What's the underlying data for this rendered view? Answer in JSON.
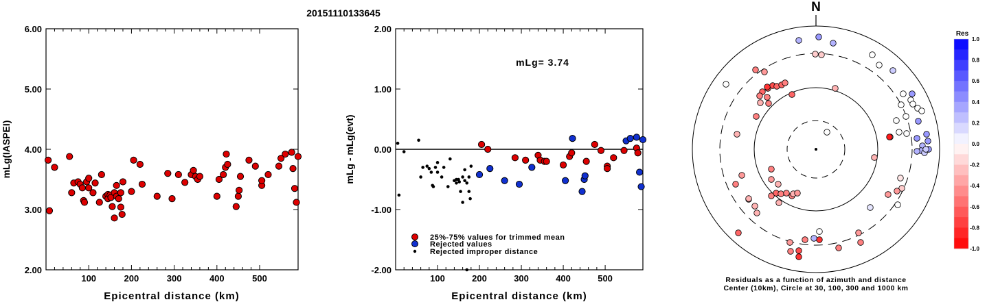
{
  "title": "20151110133645",
  "chart_data": [
    {
      "type": "scatter",
      "xlabel": "Epicentral distance (km)",
      "ylabel": "mLg(IASPEI)",
      "xlim": [
        0,
        590
      ],
      "ylim": [
        2.0,
        6.0
      ],
      "x_ticks": [
        "100",
        "200",
        "300",
        "400",
        "500"
      ],
      "y_ticks": [
        "2.00",
        "3.00",
        "4.00",
        "5.00",
        "6.00"
      ],
      "grid": false,
      "series": [
        {
          "color": "#dd0000",
          "points": [
            [
              5,
              3.82
            ],
            [
              8,
              2.98
            ],
            [
              20,
              3.7
            ],
            [
              55,
              3.88
            ],
            [
              60,
              3.28
            ],
            [
              65,
              3.44
            ],
            [
              75,
              3.46
            ],
            [
              80,
              3.42
            ],
            [
              85,
              3.36
            ],
            [
              88,
              3.15
            ],
            [
              90,
              3.12
            ],
            [
              95,
              3.46
            ],
            [
              100,
              3.36
            ],
            [
              100,
              3.52
            ],
            [
              110,
              3.28
            ],
            [
              115,
              3.44
            ],
            [
              125,
              3.12
            ],
            [
              130,
              3.58
            ],
            [
              140,
              3.22
            ],
            [
              145,
              3.25
            ],
            [
              145,
              3.18
            ],
            [
              150,
              3.24
            ],
            [
              152,
              3.2
            ],
            [
              155,
              3.05
            ],
            [
              160,
              3.28
            ],
            [
              160,
              2.86
            ],
            [
              165,
              3.4
            ],
            [
              165,
              3.22
            ],
            [
              170,
              3.18
            ],
            [
              175,
              3.28
            ],
            [
              175,
              3.04
            ],
            [
              178,
              2.92
            ],
            [
              180,
              3.46
            ],
            [
              200,
              3.3
            ],
            [
              205,
              3.82
            ],
            [
              220,
              3.75
            ],
            [
              225,
              3.42
            ],
            [
              260,
              3.22
            ],
            [
              285,
              3.6
            ],
            [
              295,
              3.18
            ],
            [
              310,
              3.58
            ],
            [
              325,
              3.45
            ],
            [
              340,
              3.58
            ],
            [
              345,
              3.65
            ],
            [
              350,
              3.55
            ],
            [
              355,
              3.5
            ],
            [
              360,
              3.55
            ],
            [
              400,
              3.22
            ],
            [
              405,
              3.5
            ],
            [
              415,
              3.58
            ],
            [
              420,
              3.7
            ],
            [
              422,
              3.92
            ],
            [
              425,
              3.75
            ],
            [
              445,
              3.05
            ],
            [
              450,
              3.22
            ],
            [
              452,
              3.32
            ],
            [
              455,
              3.55
            ],
            [
              475,
              3.82
            ],
            [
              490,
              3.72
            ],
            [
              505,
              3.4
            ],
            [
              505,
              3.48
            ],
            [
              520,
              3.58
            ],
            [
              545,
              3.72
            ],
            [
              550,
              3.85
            ],
            [
              560,
              3.92
            ],
            [
              575,
              3.95
            ],
            [
              578,
              3.68
            ],
            [
              582,
              3.35
            ],
            [
              586,
              3.12
            ],
            [
              590,
              3.88
            ]
          ]
        }
      ]
    },
    {
      "type": "scatter",
      "xlabel": "Epicentral distance (km)",
      "ylabel": "mLg - mLg(evt)",
      "annotation": "mLg= 3.74",
      "xlim": [
        0,
        590
      ],
      "ylim": [
        -2.0,
        2.0
      ],
      "x_ticks": [
        "100",
        "200",
        "300",
        "400",
        "500"
      ],
      "y_ticks": [
        "-2.00",
        "-1.00",
        "0.00",
        "1.00",
        "2.00"
      ],
      "reference_line": 0.0,
      "grid": false,
      "legend_position": "bottom-left",
      "series": [
        {
          "name": "25%-75% values for trimmed mean",
          "color": "#dd0000",
          "points": [
            [
              205,
              0.08
            ],
            [
              220,
              0.0
            ],
            [
              285,
              -0.14
            ],
            [
              310,
              -0.18
            ],
            [
              340,
              -0.1
            ],
            [
              345,
              -0.18
            ],
            [
              355,
              -0.2
            ],
            [
              360,
              -0.2
            ],
            [
              400,
              -0.26
            ],
            [
              415,
              -0.12
            ],
            [
              420,
              -0.06
            ],
            [
              455,
              -0.2
            ],
            [
              475,
              0.08
            ],
            [
              490,
              -0.02
            ],
            [
              505,
              -0.28
            ],
            [
              505,
              -0.32
            ],
            [
              520,
              -0.14
            ],
            [
              545,
              -0.02
            ],
            [
              575,
              0.02
            ],
            [
              578,
              -0.06
            ]
          ]
        },
        {
          "name": "Rejected values",
          "color": "#1030d0",
          "points": [
            [
              200,
              -0.42
            ],
            [
              225,
              -0.32
            ],
            [
              260,
              -0.52
            ],
            [
              295,
              -0.58
            ],
            [
              325,
              -0.3
            ],
            [
              405,
              -0.52
            ],
            [
              422,
              0.18
            ],
            [
              445,
              -0.7
            ],
            [
              450,
              -0.5
            ],
            [
              452,
              -0.44
            ],
            [
              550,
              0.14
            ],
            [
              560,
              0.18
            ],
            [
              575,
              0.2
            ],
            [
              582,
              -0.38
            ],
            [
              586,
              -0.62
            ],
            [
              590,
              0.16
            ]
          ]
        },
        {
          "name": "Rejected improper distance",
          "color": "#000000",
          "marker": "small",
          "points": [
            [
              5,
              0.1
            ],
            [
              8,
              -0.76
            ],
            [
              20,
              -0.04
            ],
            [
              55,
              0.15
            ],
            [
              60,
              -0.46
            ],
            [
              65,
              -0.3
            ],
            [
              75,
              -0.28
            ],
            [
              80,
              -0.32
            ],
            [
              85,
              -0.38
            ],
            [
              88,
              -0.6
            ],
            [
              90,
              -0.62
            ],
            [
              95,
              -0.3
            ],
            [
              100,
              -0.38
            ],
            [
              100,
              -0.22
            ],
            [
              110,
              -0.46
            ],
            [
              115,
              -0.3
            ],
            [
              125,
              -0.62
            ],
            [
              130,
              -0.16
            ],
            [
              140,
              -0.52
            ],
            [
              145,
              -0.5
            ],
            [
              145,
              -0.56
            ],
            [
              150,
              -0.5
            ],
            [
              152,
              -0.54
            ],
            [
              155,
              -0.7
            ],
            [
              160,
              -0.46
            ],
            [
              160,
              -0.88
            ],
            [
              165,
              -0.34
            ],
            [
              165,
              -0.52
            ],
            [
              170,
              -2.0
            ],
            [
              170,
              -0.56
            ],
            [
              175,
              -0.46
            ],
            [
              175,
              -0.7
            ],
            [
              178,
              -0.82
            ],
            [
              180,
              -0.28
            ]
          ]
        }
      ]
    },
    {
      "type": "scatter",
      "subtype": "polar",
      "north_label": "N",
      "caption": [
        "Residuals as a function of azimuth and distance",
        "Center (10km), Circle at 30, 100, 300 and 1000 km"
      ],
      "radial_rings_km": [
        30,
        100,
        300,
        1000
      ],
      "colorbar": {
        "title": "Res",
        "ticks": [
          "1.0",
          "0.8",
          "0.6",
          "0.4",
          "0.2",
          "0.0",
          "-0.2",
          "-0.4",
          "-0.6",
          "-0.8",
          "-1.0"
        ],
        "max_color": "#0000ff",
        "zero_color": "#ffffff",
        "min_color": "#ff0000"
      },
      "points_residual": [
        [
          -0.1,
          1.0
        ],
        [
          -0.2,
          1.0
        ],
        [
          -0.3,
          1.0
        ],
        [
          -0.5,
          1.0
        ],
        [
          -0.4,
          1.0
        ],
        [
          -0.6,
          1.0
        ],
        [
          -0.8,
          1.0
        ],
        [
          -0.6,
          1.0
        ],
        [
          -0.5,
          1.0
        ],
        [
          -0.4,
          1.0
        ],
        [
          -0.5,
          1.0
        ],
        [
          -0.3,
          1.0
        ],
        [
          -0.2,
          1.0
        ],
        [
          -0.6,
          1.0
        ],
        [
          -0.4,
          1.0
        ],
        [
          -0.7,
          1.0
        ],
        [
          -0.3,
          1.0
        ],
        [
          -0.4,
          1.0
        ],
        [
          -0.5,
          1.0
        ],
        [
          -0.2,
          1.0
        ],
        [
          -0.3,
          1.0
        ],
        [
          0.0,
          1.0
        ],
        [
          0.0,
          1.0
        ],
        [
          0.2,
          1.0
        ]
      ]
    }
  ]
}
